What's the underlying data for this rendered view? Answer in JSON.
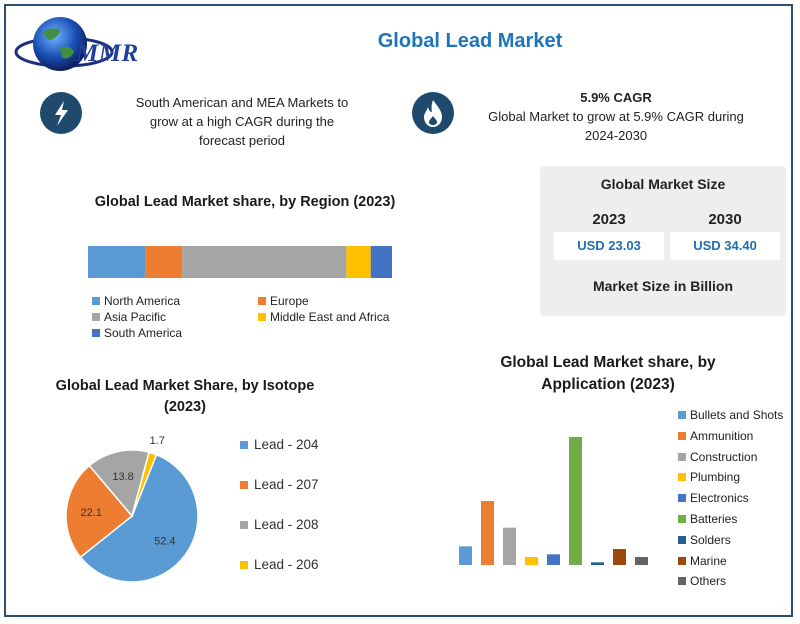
{
  "title": "Global Lead Market",
  "logo_text": "MMR",
  "info_left": {
    "lines": [
      "South American and MEA Markets to",
      "grow at a high CAGR during the",
      "forecast period"
    ]
  },
  "info_right": {
    "headline": "5.9% CAGR",
    "lines": [
      "Global Market to grow at 5.9% CAGR during",
      "2024-2030"
    ]
  },
  "market_size": {
    "title": "Global Market Size",
    "year1": "2023",
    "year2": "2030",
    "value1": "USD 23.03",
    "value2": "USD 34.40",
    "footer": "Market Size in Billion"
  },
  "colors": {
    "blue": "#5b9bd5",
    "orange": "#ed7d31",
    "gray": "#a5a5a5",
    "yellow": "#ffc000",
    "darkblue": "#4472c4",
    "green": "#70ad47",
    "navy": "#255e91",
    "brown": "#9e480e",
    "darkgray": "#636363"
  },
  "chart_data": [
    {
      "type": "bar",
      "title": "Global Lead Market share, by Region (2023)",
      "orientation": "horizontal-stacked",
      "categories": [
        "North America",
        "Europe",
        "Asia Pacific",
        "Middle East and Africa",
        "South America"
      ],
      "values": [
        19,
        12,
        54,
        8,
        7
      ],
      "unit": "%",
      "legend_position": "bottom"
    },
    {
      "type": "pie",
      "title": "Global Lead Market Share, by Isotope (2023)",
      "categories": [
        "Lead - 204",
        "Lead - 207",
        "Lead - 208",
        "Lead - 206"
      ],
      "values": [
        52.4,
        22.1,
        13.8,
        1.7
      ],
      "labels": [
        "52.4",
        "22.1",
        "13.8",
        "1.7"
      ],
      "legend_position": "right"
    },
    {
      "type": "bar",
      "title": "Global Lead Market share, by Application (2023)",
      "categories": [
        "Bullets and Shots",
        "Ammunition",
        "Construction",
        "Plumbing",
        "Electronics",
        "Batteries",
        "Solders",
        "Marine",
        "Others"
      ],
      "values": [
        7,
        24,
        14,
        3,
        4,
        48,
        1,
        6,
        3
      ],
      "unit": "%",
      "legend_position": "right"
    }
  ]
}
